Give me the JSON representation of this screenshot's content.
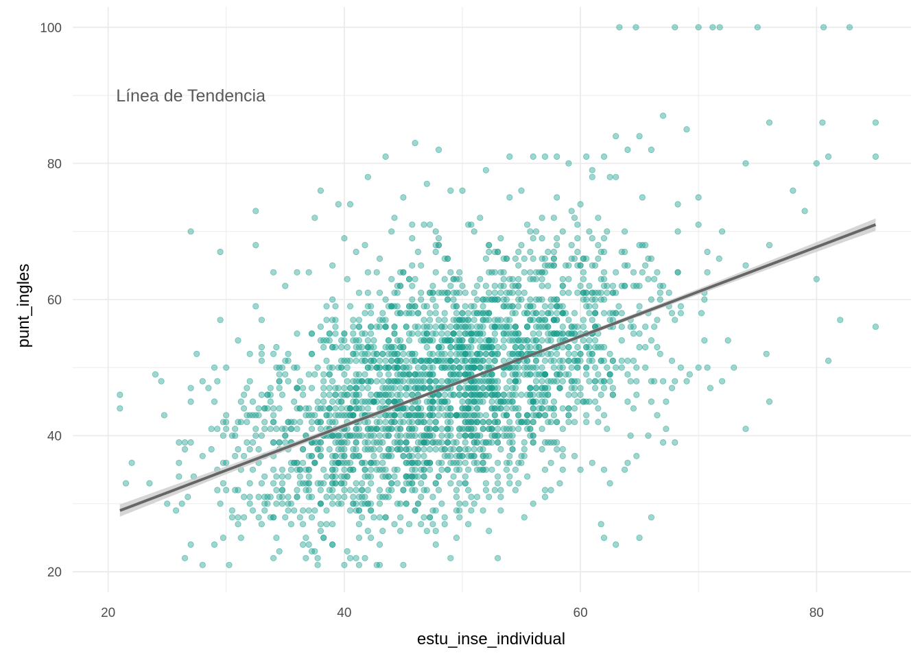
{
  "chart_data": {
    "type": "scatter",
    "title": "",
    "xlabel": "estu_inse_individual",
    "ylabel": "punt_ingles",
    "xlim": [
      17,
      88
    ],
    "ylim": [
      17,
      103
    ],
    "x_ticks": [
      20,
      40,
      60,
      80
    ],
    "y_ticks": [
      20,
      40,
      60,
      80,
      100
    ],
    "x_tick_labels": [
      "20",
      "40",
      "60",
      "80"
    ],
    "y_tick_labels": [
      "20",
      "40",
      "60",
      "80",
      "100"
    ],
    "grid": true,
    "legend": "none",
    "annotation": {
      "text": "Línea de Tendencia",
      "x": 27,
      "y": 90
    },
    "colors": {
      "points": "#1a9e8c",
      "trend_line": "#666666",
      "confidence_band": "#c8c8c8",
      "grid": "#ebebeb"
    },
    "trend_line": {
      "x": [
        21,
        85
      ],
      "y": [
        29,
        71
      ],
      "ci_half_width_ends": 0.9,
      "ci_half_width_center": 0.25
    },
    "points": [
      [
        63.3,
        100
      ],
      [
        64.7,
        100
      ],
      [
        68,
        100
      ],
      [
        70,
        100
      ],
      [
        71.2,
        100
      ],
      [
        71.8,
        100
      ],
      [
        75,
        100
      ],
      [
        80.6,
        100
      ],
      [
        82.8,
        100
      ],
      [
        85,
        86
      ],
      [
        85,
        81
      ],
      [
        85,
        56
      ],
      [
        82,
        57
      ],
      [
        81,
        51
      ],
      [
        80,
        63
      ],
      [
        80.5,
        86
      ],
      [
        76,
        86
      ],
      [
        78,
        76
      ],
      [
        80,
        80
      ],
      [
        81,
        81
      ],
      [
        79,
        73
      ],
      [
        74,
        80
      ],
      [
        67,
        87
      ],
      [
        65,
        84
      ],
      [
        63,
        84
      ],
      [
        60.5,
        81
      ],
      [
        57,
        81
      ],
      [
        62,
        81
      ],
      [
        64,
        82
      ],
      [
        66,
        82
      ],
      [
        69,
        85
      ],
      [
        70,
        71
      ],
      [
        72,
        70
      ],
      [
        74,
        65
      ],
      [
        76,
        68
      ],
      [
        71,
        47
      ],
      [
        73,
        50
      ],
      [
        72,
        48
      ],
      [
        74,
        41
      ],
      [
        76,
        45
      ],
      [
        70,
        50
      ],
      [
        66,
        45
      ],
      [
        67,
        39
      ],
      [
        68,
        39
      ],
      [
        66,
        28
      ],
      [
        63,
        24
      ],
      [
        65,
        25
      ],
      [
        62,
        25
      ],
      [
        53,
        22
      ],
      [
        49,
        22
      ],
      [
        43,
        21
      ],
      [
        45,
        21
      ],
      [
        41,
        22
      ],
      [
        43,
        24
      ],
      [
        39,
        24
      ],
      [
        37,
        24
      ],
      [
        35,
        28
      ],
      [
        33,
        27
      ],
      [
        31,
        27
      ],
      [
        29,
        24
      ],
      [
        27,
        24
      ],
      [
        21,
        46
      ],
      [
        21,
        44
      ],
      [
        21.5,
        33
      ],
      [
        22,
        36
      ],
      [
        23.5,
        33
      ],
      [
        24,
        49
      ],
      [
        24.5,
        48
      ],
      [
        25,
        30
      ],
      [
        26,
        36
      ],
      [
        26.5,
        39
      ],
      [
        27,
        39
      ],
      [
        27.5,
        52
      ],
      [
        28,
        48
      ],
      [
        29,
        45
      ],
      [
        29.5,
        57
      ],
      [
        30,
        50
      ],
      [
        31,
        54
      ],
      [
        32,
        52
      ],
      [
        32.5,
        73
      ],
      [
        32.5,
        68
      ],
      [
        27,
        70
      ],
      [
        29.5,
        67
      ],
      [
        34,
        64
      ],
      [
        36,
        64
      ],
      [
        37,
        64
      ],
      [
        37.5,
        72
      ],
      [
        39.5,
        74
      ],
      [
        40.5,
        74
      ],
      [
        41,
        67
      ],
      [
        42,
        78
      ],
      [
        43.5,
        81
      ],
      [
        46,
        83
      ],
      [
        48,
        82
      ],
      [
        38,
        76
      ],
      [
        45,
        75
      ],
      [
        47,
        77
      ],
      [
        52,
        79
      ],
      [
        54,
        81
      ],
      [
        56,
        81
      ],
      [
        58,
        81
      ],
      [
        59,
        80
      ],
      [
        61,
        79
      ],
      [
        63,
        78
      ],
      [
        55,
        76
      ],
      [
        50,
        76
      ],
      [
        44,
        70
      ],
      [
        40,
        69
      ],
      [
        35,
        62
      ],
      [
        33,
        57
      ]
    ]
  }
}
